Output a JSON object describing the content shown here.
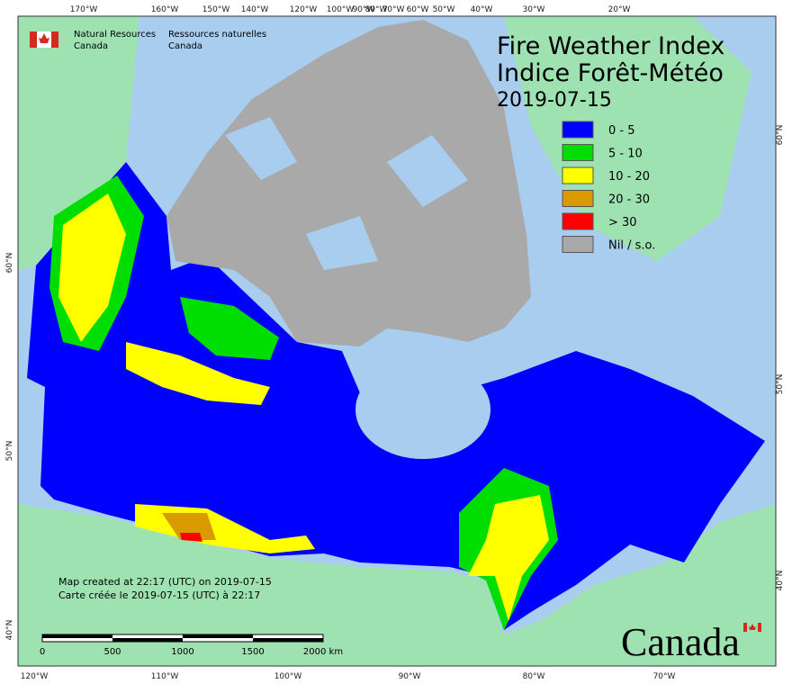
{
  "header": {
    "agency_en": [
      "Natural Resources",
      "Canada"
    ],
    "agency_fr": [
      "Ressources naturelles",
      "Canada"
    ]
  },
  "title": {
    "line1": "Fire Weather Index",
    "line2": "Indice Forêt-Météo",
    "date": "2019-07-15"
  },
  "legend": [
    {
      "label": "0 - 5",
      "color": "#0000ff"
    },
    {
      "label": "5 - 10",
      "color": "#00dd00"
    },
    {
      "label": "10 - 20",
      "color": "#ffff00"
    },
    {
      "label": "20 - 30",
      "color": "#d99a00"
    },
    {
      "label": "> 30",
      "color": "#ff0000"
    },
    {
      "label": "Nil / s.o.",
      "color": "#a9a9a9"
    }
  ],
  "graticule": {
    "top": [
      "170°W",
      "160°W",
      "150°W",
      "140°W",
      "120°W",
      "100°W",
      "90°W",
      "80°W",
      "70°W",
      "60°W",
      "50°W",
      "40°W",
      "30°W",
      "20°W"
    ],
    "bottom": [
      "120°W",
      "110°W",
      "100°W",
      "90°W",
      "80°W",
      "70°W"
    ],
    "left": [
      "60°N",
      "50°N",
      "40°N"
    ],
    "right": [
      "60°N",
      "50°N",
      "40°N"
    ]
  },
  "footer": {
    "created_en": "Map created at 22:17 (UTC) on 2019-07-15",
    "created_fr": "Carte créée le 2019-07-15 (UTC) à 22:17"
  },
  "scale_bar": [
    "0",
    "500",
    "1000",
    "1500",
    "2000 km"
  ],
  "wordmark": "Canada"
}
